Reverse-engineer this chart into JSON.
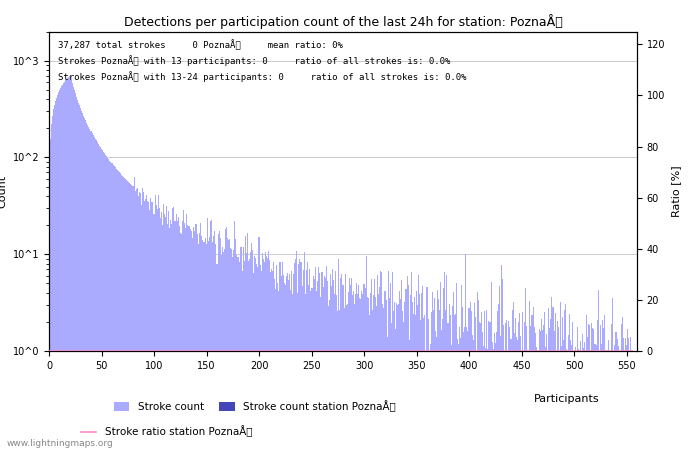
{
  "title": "Detections per participation count of the last 24h for station: PoznaÅ",
  "xlabel_participants": "Participants",
  "ylabel_left": "Count",
  "ylabel_right": "Ratio [%]",
  "annotation_line1": "37,287 total strokes     0 PoznaÅ     mean ratio: 0%",
  "annotation_line2": "Strokes PoznaÅ with 13 participants: 0     ratio of all strokes is: 0.0%",
  "annotation_line3": "Strokes PoznaÅ with 13-24 participants: 0     ratio of all strokes is: 0.0%",
  "bar_color_global": "#aaaaff",
  "bar_color_station": "#4444bb",
  "line_color_ratio": "#ff88cc",
  "watermark": "www.lightningmaps.org",
  "xlim": [
    0,
    560
  ],
  "ylim_log": [
    1,
    2000
  ],
  "ylim_right": [
    0,
    125
  ],
  "yticks_right": [
    0,
    20,
    40,
    60,
    80,
    100,
    120
  ],
  "xticks": [
    0,
    50,
    100,
    150,
    200,
    250,
    300,
    350,
    400,
    450,
    500,
    550
  ],
  "legend_stroke_count": "Stroke count",
  "legend_station": "Stroke count station PoznaÅ",
  "legend_ratio": "Stroke ratio station PoznaÅ",
  "peak_participant": 20,
  "peak_value": 700,
  "decay_power": 1.9,
  "max_participants": 555
}
